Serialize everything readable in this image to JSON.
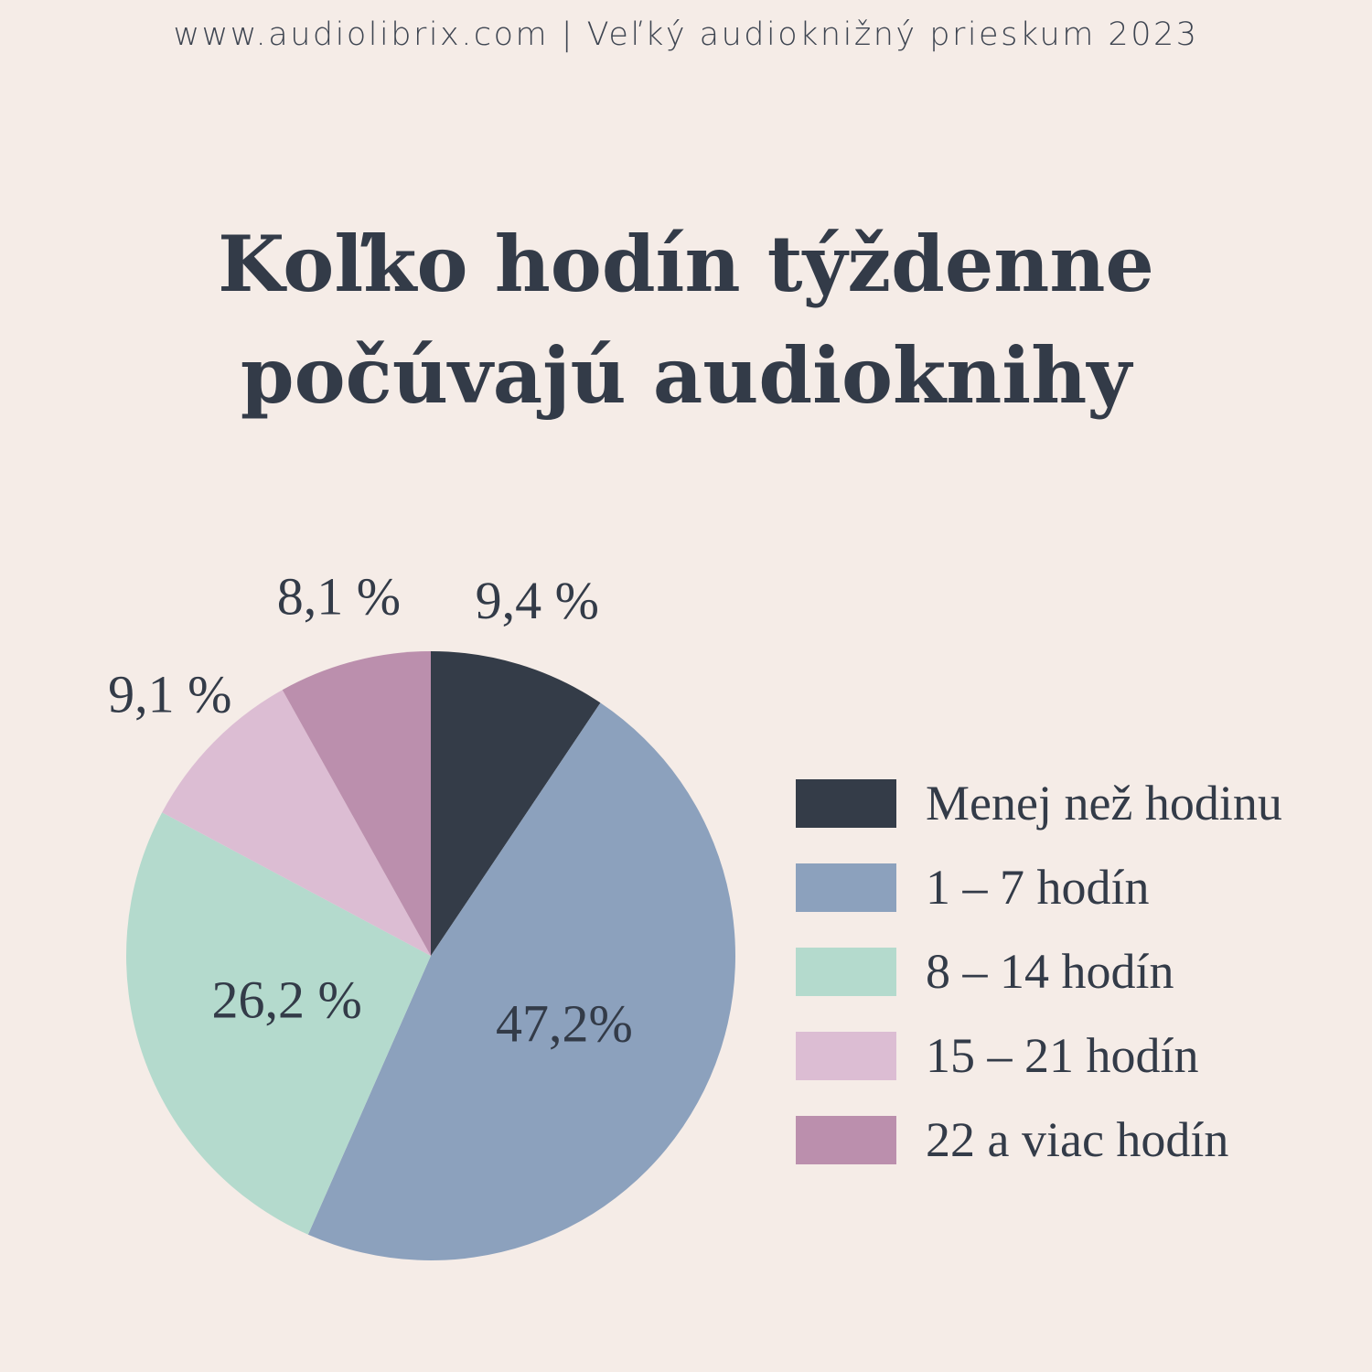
{
  "header": {
    "text": "www.audiolibrix.com  |  Veľký audioknižný prieskum 2023"
  },
  "title": {
    "line1": "Koľko hodín týždenne",
    "line2": "počúvajú audioknihy"
  },
  "chart_data": {
    "type": "pie",
    "title": "Koľko hodín týždenne počúvajú audioknihy",
    "start_angle": "12 o'clock",
    "direction": "clockwise",
    "legend_position": "right",
    "slices": [
      {
        "label": "Menej než hodinu",
        "value": 9.4,
        "value_label": "9,4 %",
        "color": "#343c48",
        "label_position": "outside"
      },
      {
        "label": "1 – 7 hodín",
        "value": 47.2,
        "value_label": "47,2%",
        "color": "#8ca1bd",
        "label_position": "inside"
      },
      {
        "label": "8 – 14 hodín",
        "value": 26.2,
        "value_label": "26,2 %",
        "color": "#b4dacd",
        "label_position": "inside"
      },
      {
        "label": "15 – 21 hodín",
        "value": 9.1,
        "value_label": "9,1 %",
        "color": "#dcbdd3",
        "label_position": "outside"
      },
      {
        "label": "22 a viac hodín",
        "value": 8.1,
        "value_label": "8,1 %",
        "color": "#bb8fad",
        "label_position": "outside"
      }
    ]
  }
}
